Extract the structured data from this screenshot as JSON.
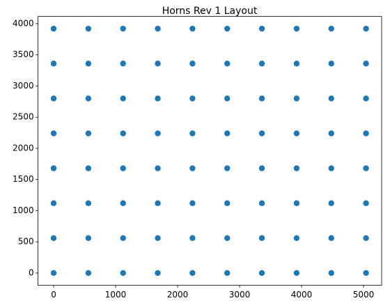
{
  "chart_data": {
    "type": "scatter",
    "title": "Horns Rev 1 Layout",
    "color": "#1f77b4",
    "x": [
      0,
      560,
      1120,
      1680,
      2240,
      2800,
      3360,
      3920,
      4480,
      5040,
      0,
      560,
      1120,
      1680,
      2240,
      2800,
      3360,
      3920,
      4480,
      5040,
      0,
      560,
      1120,
      1680,
      2240,
      2800,
      3360,
      3920,
      4480,
      5040,
      0,
      560,
      1120,
      1680,
      2240,
      2800,
      3360,
      3920,
      4480,
      5040,
      0,
      560,
      1120,
      1680,
      2240,
      2800,
      3360,
      3920,
      4480,
      5040,
      0,
      560,
      1120,
      1680,
      2240,
      2800,
      3360,
      3920,
      4480,
      5040,
      0,
      560,
      1120,
      1680,
      2240,
      2800,
      3360,
      3920,
      4480,
      5040,
      0,
      560,
      1120,
      1680,
      2240,
      2800,
      3360,
      3920,
      4480,
      5040
    ],
    "y": [
      0,
      0,
      0,
      0,
      0,
      0,
      0,
      0,
      0,
      0,
      560,
      560,
      560,
      560,
      560,
      560,
      560,
      560,
      560,
      560,
      1120,
      1120,
      1120,
      1120,
      1120,
      1120,
      1120,
      1120,
      1120,
      1120,
      1680,
      1680,
      1680,
      1680,
      1680,
      1680,
      1680,
      1680,
      1680,
      1680,
      2240,
      2240,
      2240,
      2240,
      2240,
      2240,
      2240,
      2240,
      2240,
      2240,
      2800,
      2800,
      2800,
      2800,
      2800,
      2800,
      2800,
      2800,
      2800,
      2800,
      3360,
      3360,
      3360,
      3360,
      3360,
      3360,
      3360,
      3360,
      3360,
      3360,
      3920,
      3920,
      3920,
      3920,
      3920,
      3920,
      3920,
      3920,
      3920,
      3920
    ],
    "xlim": [
      -252,
      5292
    ],
    "ylim": [
      -196,
      4116
    ],
    "xticks": [
      0,
      1000,
      2000,
      3000,
      4000,
      5000
    ],
    "yticks": [
      0,
      500,
      1000,
      1500,
      2000,
      2500,
      3000,
      3500,
      4000
    ]
  }
}
